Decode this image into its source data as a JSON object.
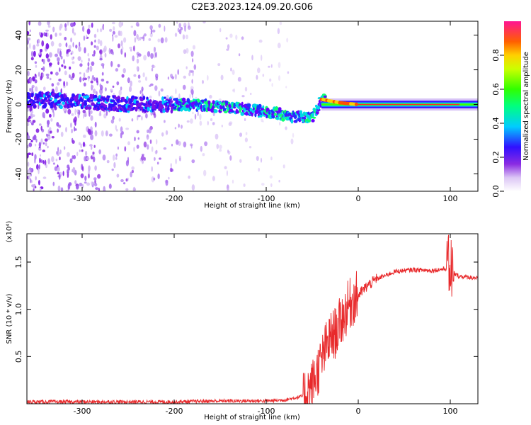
{
  "title": "C2E3.2023.124.09.20.G06",
  "chart_data": [
    {
      "type": "heatmap",
      "title": "C2E3.2023.124.09.20.G06",
      "xlabel": "Height of straight line (km)",
      "ylabel": "Frequency (Hz)",
      "xlim": [
        -360,
        130
      ],
      "ylim": [
        -50,
        48
      ],
      "xticks": [
        -300,
        -200,
        -100,
        0,
        100
      ],
      "yticks": [
        -40,
        -20,
        0,
        20,
        40
      ],
      "colorbar": {
        "label": "Normalized spectral amplitude",
        "range": [
          0.0,
          1.0
        ],
        "ticks": [
          "0.0",
          "0.2",
          "0.4",
          "0.6",
          "0.8"
        ]
      },
      "ridge": [
        {
          "x": -360,
          "y": 3
        },
        {
          "x": -300,
          "y": 2
        },
        {
          "x": -250,
          "y": 0
        },
        {
          "x": -200,
          "y": 0
        },
        {
          "x": -150,
          "y": -1
        },
        {
          "x": -100,
          "y": -4
        },
        {
          "x": -70,
          "y": -7
        },
        {
          "x": -50,
          "y": -8
        },
        {
          "x": -40,
          "y": 3
        },
        {
          "x": -20,
          "y": 1
        },
        {
          "x": 0,
          "y": 0
        },
        {
          "x": 130,
          "y": 0
        }
      ]
    },
    {
      "type": "line",
      "xlabel": "Height of straight line (km)",
      "ylabel": "SNR (10 * v/v)",
      "yscale_label": "(x10⁴)",
      "xlim": [
        -360,
        130
      ],
      "ylim": [
        0,
        1.8
      ],
      "xticks": [
        -300,
        -200,
        -100,
        0,
        100
      ],
      "yticks": [
        0.5,
        1.0,
        1.5
      ],
      "ytick_labels": [
        "0.5",
        "1.0",
        "1.5"
      ],
      "series": [
        {
          "color": "#e8282a",
          "x": [
            -360,
            -200,
            -150,
            -100,
            -80,
            -60,
            -50,
            -40,
            -35,
            -30,
            -25,
            -20,
            -15,
            -10,
            -5,
            0,
            10,
            20,
            30,
            40,
            60,
            80,
            95,
            100,
            105,
            110,
            130
          ],
          "y": [
            0.02,
            0.02,
            0.03,
            0.03,
            0.04,
            0.08,
            0.2,
            0.45,
            0.6,
            0.7,
            0.75,
            0.85,
            0.95,
            1.05,
            1.1,
            1.15,
            1.25,
            1.32,
            1.36,
            1.4,
            1.42,
            1.41,
            1.43,
            1.45,
            1.37,
            1.35,
            1.33
          ]
        }
      ]
    }
  ]
}
